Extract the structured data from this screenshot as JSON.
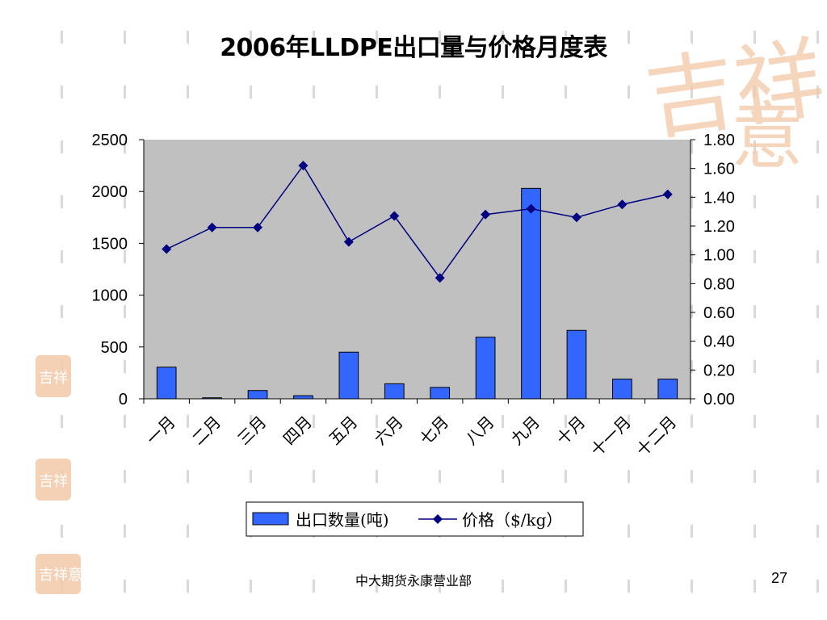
{
  "slide": {
    "title": "2006年LLDPE出口量与价格月度表",
    "footer": "中大期货永康营业部",
    "page_number": "27",
    "watermark": "吉祥如意"
  },
  "colors": {
    "plot_bg": "#c0c0c0",
    "bar_fill": "#3366ff",
    "bar_stroke": "#000000",
    "line": "#000080",
    "marker": "#000080",
    "watermark": "#f2c9a8",
    "dash_marks": "#d9d9d9"
  },
  "chart_data": {
    "type": "bar",
    "title": "",
    "categories": [
      "一月",
      "二月",
      "三月",
      "四月",
      "五月",
      "六月",
      "七月",
      "八月",
      "九月",
      "十月",
      "十一月",
      "十二月"
    ],
    "series": [
      {
        "name": "出口数量(吨)",
        "type": "bar",
        "axis": "left",
        "values": [
          305,
          10,
          80,
          30,
          450,
          145,
          110,
          595,
          2030,
          660,
          190,
          190
        ]
      },
      {
        "name": "价格（$/kg）",
        "type": "line",
        "axis": "right",
        "marker": "diamond",
        "values": [
          1.04,
          1.19,
          1.19,
          1.62,
          1.09,
          1.27,
          0.84,
          1.28,
          1.32,
          1.26,
          1.35,
          1.42
        ]
      }
    ],
    "y_left": {
      "min": 0,
      "max": 2500,
      "ticks": [
        "0",
        "500",
        "1000",
        "1500",
        "2000",
        "2500"
      ]
    },
    "y_right": {
      "min": 0,
      "max": 1.8,
      "ticks": [
        "0.00",
        "0.20",
        "0.40",
        "0.60",
        "0.80",
        "1.00",
        "1.20",
        "1.40",
        "1.60",
        "1.80"
      ]
    },
    "grid": false,
    "legend": {
      "position": "bottom"
    }
  }
}
